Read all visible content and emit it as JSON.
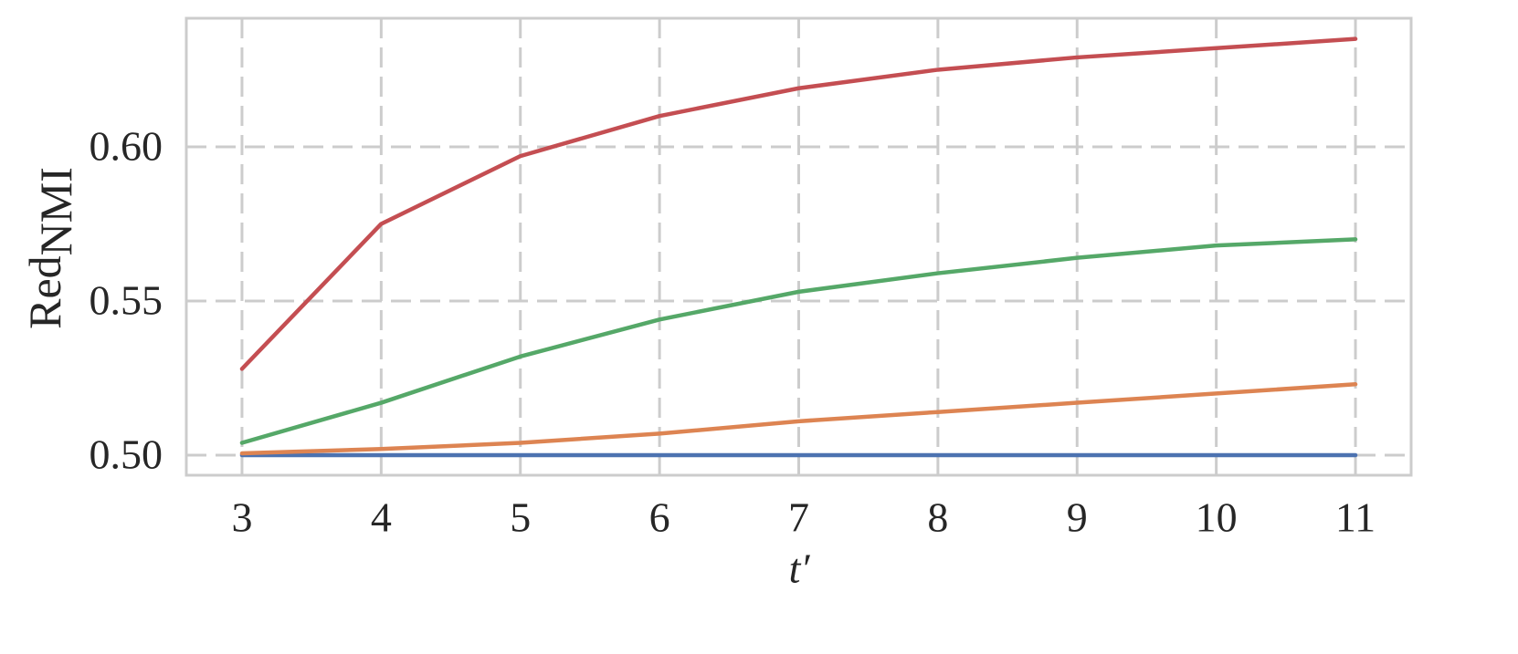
{
  "chart_data": {
    "type": "line",
    "xlabel": "t′",
    "ylabel": {
      "text": "Red",
      "subscript": "NMI"
    },
    "x": [
      3,
      4,
      5,
      6,
      7,
      8,
      9,
      10,
      11
    ],
    "series": [
      {
        "color": "#4c72b0",
        "values": [
          0.5,
          0.5,
          0.5,
          0.5,
          0.5,
          0.5,
          0.5,
          0.5,
          0.5
        ]
      },
      {
        "color": "#dd8452",
        "values": [
          0.5006,
          0.502,
          0.504,
          0.507,
          0.511,
          0.514,
          0.517,
          0.52,
          0.523
        ]
      },
      {
        "color": "#55a868",
        "values": [
          0.504,
          0.517,
          0.532,
          0.544,
          0.553,
          0.559,
          0.564,
          0.568,
          0.57
        ]
      },
      {
        "color": "#c44e52",
        "values": [
          0.528,
          0.575,
          0.597,
          0.61,
          0.619,
          0.625,
          0.629,
          0.632,
          0.635
        ]
      }
    ],
    "xlim": [
      2.6,
      11.4
    ],
    "ylim": [
      0.4935,
      0.6417
    ],
    "xticks": [
      3,
      4,
      5,
      6,
      7,
      8,
      9,
      10,
      11
    ],
    "yticks": [
      {
        "value": 0.5,
        "label": "0.50"
      },
      0.55,
      {
        "value": 0.6,
        "label": "0.60"
      }
    ],
    "grid": true
  }
}
